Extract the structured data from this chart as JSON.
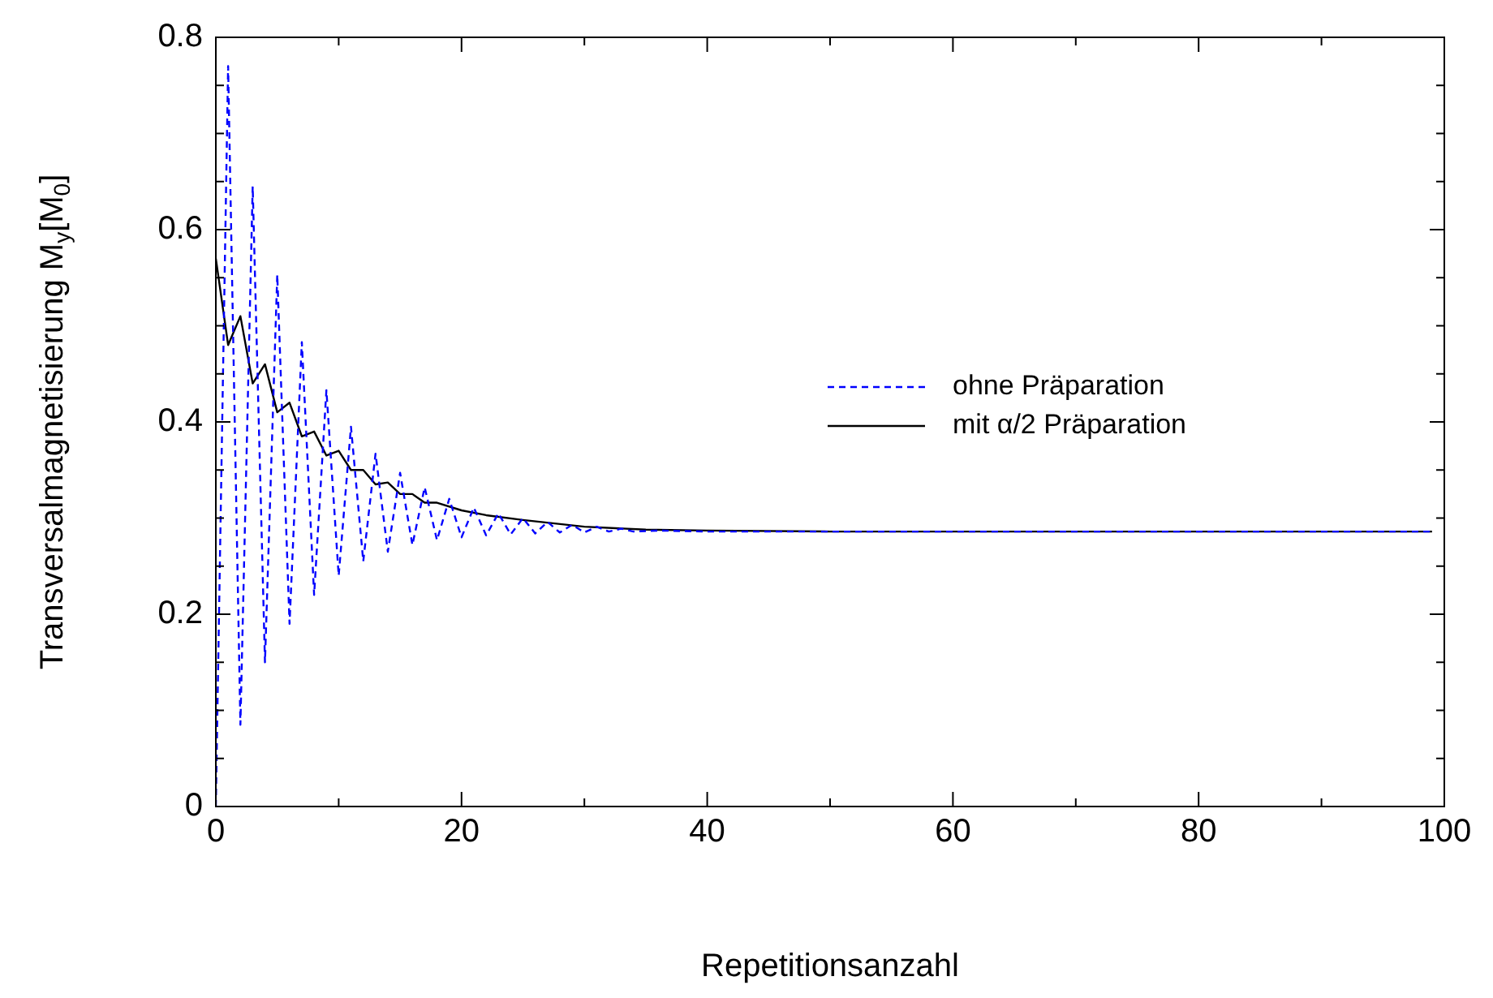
{
  "chart_data": {
    "type": "line",
    "xlabel": "Repetitionsanzahl",
    "ylabel": "Transversalmagnetisierung M$_{y}$[M$_{0}$]",
    "xlim": [
      0,
      100
    ],
    "xticks": [
      0,
      {
        "value": 10,
        "label": null
      },
      20,
      {
        "value": 30,
        "label": null
      },
      40,
      {
        "value": 50,
        "label": null
      },
      60,
      {
        "value": 70,
        "label": null
      },
      80,
      {
        "value": 90,
        "label": null
      },
      100
    ],
    "ylim": [
      0,
      0.8
    ],
    "yticks": [
      0,
      {
        "value": 0.05,
        "label": null
      },
      {
        "value": 0.1,
        "label": null
      },
      {
        "value": 0.15,
        "label": null
      },
      0.2,
      {
        "value": 0.25,
        "label": null
      },
      {
        "value": 0.3,
        "label": null
      },
      {
        "value": 0.35,
        "label": null
      },
      0.4,
      {
        "value": 0.45,
        "label": null
      },
      {
        "value": 0.5,
        "label": null
      },
      {
        "value": 0.55,
        "label": null
      },
      0.6,
      {
        "value": 0.65,
        "label": null
      },
      {
        "value": 0.7,
        "label": null
      },
      {
        "value": 0.75,
        "label": null
      },
      0.8
    ],
    "grid": false,
    "legend": "right",
    "marker": "none",
    "series": [
      {
        "name": "ohne Präparation",
        "color": "#0000ff",
        "line_style": "dashed",
        "x": [
          0,
          1,
          2,
          3,
          4,
          5,
          6,
          7,
          8,
          9,
          10,
          11,
          12,
          13,
          14,
          15,
          16,
          17,
          18,
          19,
          20,
          21,
          22,
          23,
          24,
          25,
          26,
          27,
          28,
          29,
          30,
          31,
          32,
          33,
          34,
          36,
          40,
          99
        ],
        "values": [
          0,
          0.77,
          0.085,
          0.645,
          0.15,
          0.553,
          0.19,
          0.483,
          0.22,
          0.433,
          0.24,
          0.395,
          0.255,
          0.367,
          0.265,
          0.347,
          0.272,
          0.332,
          0.277,
          0.32,
          0.28,
          0.311,
          0.282,
          0.305,
          0.283,
          0.3,
          0.284,
          0.296,
          0.285,
          0.293,
          0.285,
          0.291,
          0.286,
          0.289,
          0.286,
          0.287,
          0.286,
          0.286
        ]
      },
      {
        "name": "mit α/2 Präparation",
        "color": "#000000",
        "line_style": "solid",
        "x": [
          0,
          1,
          2,
          3,
          4,
          5,
          6,
          7,
          8,
          9,
          10,
          11,
          12,
          13,
          14,
          15,
          16,
          17,
          18,
          20,
          22,
          25,
          30,
          35,
          40,
          50,
          99
        ],
        "values": [
          0.57,
          0.48,
          0.51,
          0.44,
          0.46,
          0.41,
          0.42,
          0.385,
          0.39,
          0.365,
          0.37,
          0.35,
          0.35,
          0.335,
          0.337,
          0.325,
          0.325,
          0.316,
          0.316,
          0.308,
          0.303,
          0.298,
          0.291,
          0.288,
          0.287,
          0.286,
          0.286
        ]
      }
    ]
  }
}
